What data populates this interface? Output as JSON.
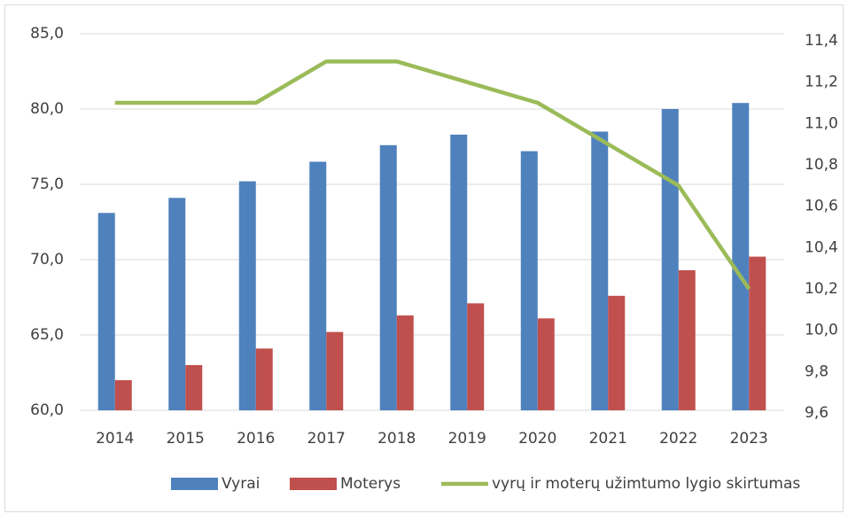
{
  "chart_data": {
    "type": "bar",
    "categories": [
      "2014",
      "2015",
      "2016",
      "2017",
      "2018",
      "2019",
      "2020",
      "2021",
      "2022",
      "2023"
    ],
    "series": [
      {
        "name": "Vyrai",
        "color": "#4f81bd",
        "values": [
          73.1,
          74.1,
          75.2,
          76.5,
          77.6,
          78.3,
          77.2,
          78.5,
          80.0,
          80.4
        ]
      },
      {
        "name": "Moterys",
        "color": "#c0504d",
        "values": [
          62.0,
          63.0,
          64.1,
          65.2,
          66.3,
          67.1,
          66.1,
          67.6,
          69.3,
          70.2
        ]
      },
      {
        "name": "vyrų ir moterų užimtumo lygio skirtumas",
        "color": "#9bbb59",
        "type": "line",
        "axis": "y2",
        "values": [
          11.1,
          11.1,
          11.1,
          11.3,
          11.3,
          11.2,
          11.1,
          10.9,
          10.7,
          10.2
        ]
      }
    ],
    "ylim": [
      60,
      85
    ],
    "yticks": [
      {
        "value": 60,
        "label": "60,0"
      },
      {
        "value": 65,
        "label": "65,0"
      },
      {
        "value": 70,
        "label": "70,0"
      },
      {
        "value": 75,
        "label": "75,0"
      },
      {
        "value": 80,
        "label": "80,0"
      },
      {
        "value": 85,
        "label": "85,0"
      }
    ],
    "y2lim": [
      9.6,
      11.4
    ],
    "y2ticks": [
      {
        "value": 9.6,
        "label": "9,6"
      },
      {
        "value": 9.8,
        "label": "9,8"
      },
      {
        "value": 10.0,
        "label": "10,0"
      },
      {
        "value": 10.2,
        "label": "10,2"
      },
      {
        "value": 10.4,
        "label": "10,4"
      },
      {
        "value": 10.6,
        "label": "10,6"
      },
      {
        "value": 10.8,
        "label": "10,8"
      },
      {
        "value": 11.0,
        "label": "11,0"
      },
      {
        "value": 11.2,
        "label": "11,2"
      },
      {
        "value": 11.4,
        "label": "11,4"
      }
    ],
    "grid": true,
    "legend": "bottom"
  }
}
